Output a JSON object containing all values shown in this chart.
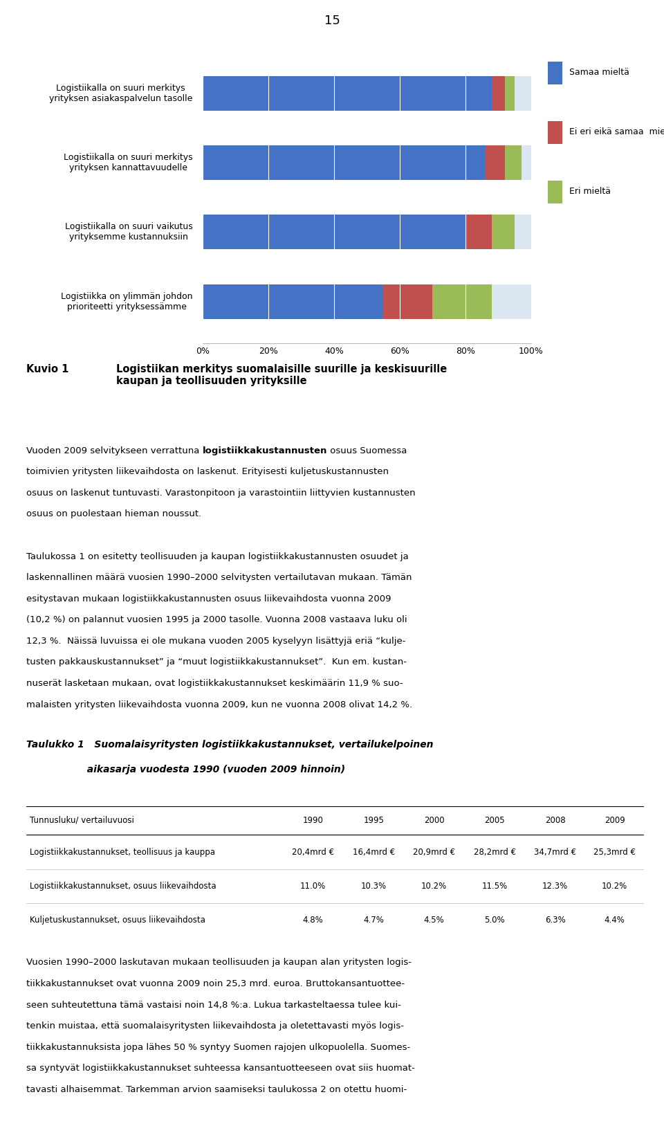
{
  "page_number": "15",
  "chart": {
    "categories": [
      "Logistiikalla on suuri merkitys\nyrityksen asiakaspalvelun tasolle",
      "Logistiikalla on suuri merkitys\nyrityksen kannattavuudelle",
      "Logistiikalla on suuri vaikutus\nyrityksemme kustannuksiin",
      "Logistiikka on ylimmän johdon\nprioriteetti yrityksessämme"
    ],
    "samaa_mielta": [
      88,
      86,
      80,
      55
    ],
    "ei_eri_eika_samaa": [
      4,
      6,
      8,
      15
    ],
    "eri_mielta": [
      3,
      5,
      7,
      18
    ],
    "colors": {
      "samaa_mielta": "#4472C4",
      "ei_eri_eika_samaa": "#C0504D",
      "eri_mielta": "#9BBB59",
      "background_bar": "#DCE6F1"
    },
    "legend": [
      "Samaa mieltä",
      "Ei eri eikä samaa  mieltä",
      "Eri mieltä"
    ],
    "xticks": [
      0,
      20,
      40,
      60,
      80,
      100
    ],
    "xtick_labels": [
      "0%",
      "20%",
      "40%",
      "60%",
      "80%",
      "100%"
    ]
  },
  "caption_label": "Kuvio 1",
  "caption_text": "Logistiikan merkitys suomalaisille suurille ja keskisuurille\nkaupan ja teollisuuden yrityksille",
  "body_text_plain": [
    "Vuoden 2009 selvitykseen verrattuna ",
    " osuus Suomessa",
    "toimivien yritysten liikevaihdosta on laskenut. Erityisesti kuljetuskustannusten",
    "osuus on laskenut tuntuvasti. Varastonpitoon ja varastointiin liittyvien kustannusten",
    "osuus on puolestaan hieman noussut.",
    "",
    "Taulukossa 1 on esitetty teollisuuden ja kaupan logistiikkakustannusten osuudet ja",
    "laskennallinen määrä vuosien 1990–2000 selvitysten vertailutavan mukaan. Tämän",
    "esitystavan mukaan logistiikkakustannusten osuus liikevaihdosta vuonna 2009",
    "(10,2 %) on palannut vuosien 1995 ja 2000 tasolle. Vuonna 2008 vastaava luku oli",
    "12,3 %.  Näissä luvuissa ei ole mukana vuoden 2005 kyselyyn lisättyjä eriä “kulje-",
    "tusten pakkauskustannukset” ja “muut logistiikkakustannukset”.  Kun em. kustan-",
    "nuserät lasketaan mukaan, ovat logistiikkakustannukset keskimäärin 11,9 % suo-",
    "malaisten yritysten liikevaihdosta vuonna 2009, kun ne vuonna 2008 olivat 14,2 %."
  ],
  "body_line1_before_bold": "Vuoden 2009 selvitykseen verrattuna ",
  "body_line1_bold": "logistiikkakustannusten",
  "body_line1_after_bold": " osuus Suomessa",
  "body_lines": [
    "Vuoden 2009 selvitykseen verrattuna logistiikkakustannusten osuus Suomessa",
    "toimivien yritysten liikevaihdosta on laskenut. Erityisesti kuljetuskustannusten",
    "osuus on laskenut tuntuvasti. Varastonpitoon ja varastointiin liittyvien kustannusten",
    "osuus on puolestaan hieman noussut.",
    "",
    "Taulukossa 1 on esitetty teollisuuden ja kaupan logistiikkakustannusten osuudet ja",
    "laskennallinen määrä vuosien 1990–2000 selvitysten vertailutavan mukaan. Tämän",
    "esitystavan mukaan logistiikkakustannusten osuus liikevaihdosta vuonna 2009",
    "(10,2 %) on palannut vuosien 1995 ja 2000 tasolle. Vuonna 2008 vastaava luku oli",
    "12,3 %.  Näissä luvuissa ei ole mukana vuoden 2005 kyselyyn lisättyjä eriä “kulje-",
    "tusten pakkauskustannukset” ja “muut logistiikkakustannukset”.  Kun em. kustan-",
    "nuserät lasketaan mukaan, ovat logistiikkakustannukset keskimäärin 11,9 % suo-",
    "malaisten yritysten liikevaihdosta vuonna 2009, kun ne vuonna 2008 olivat 14,2 %."
  ],
  "table_title_line1": "Taulukko 1   Suomalaisyritysten logistiikkakustannukset, vertailukelpoinen",
  "table_title_line2": "                  aikasarja vuodesta 1990 (vuoden 2009 hinnoin)",
  "table_headers": [
    "Tunnusluku/ vertailuvuosi",
    "1990",
    "1995",
    "2000",
    "2005",
    "2008",
    "2009"
  ],
  "table_rows": [
    [
      "Logistiikkakustannukset, teollisuus ja kauppa",
      "20,4mrd €",
      "16,4mrd €",
      "20,9mrd €",
      "28,2mrd €",
      "34,7mrd €",
      "25,3mrd €"
    ],
    [
      "Logistiikkakustannukset, osuus liikevaihdosta",
      "11.0%",
      "10.3%",
      "10.2%",
      "11.5%",
      "12.3%",
      "10.2%"
    ],
    [
      "Kuljetuskustannukset, osuus liikevaihdosta",
      "4.8%",
      "4.7%",
      "4.5%",
      "5.0%",
      "6.3%",
      "4.4%"
    ]
  ],
  "footer_lines": [
    "Vuosien 1990–2000 laskutavan mukaan teollisuuden ja kaupan alan yritysten logis-",
    "tiikkakustannukset ovat vuonna 2009 noin 25,3 mrd. euroa. Bruttokansantuottee-",
    "seen suhteutettuna tämä vastaisi noin 14,8 %:a. Lukua tarkasteltaessa tulee kui-",
    "tenkin muistaa, että suomalaisyritysten liikevaihdosta ja oletettavasti myös logis-",
    "tiikkakustannuksista jopa lähes 50 % syntyy Suomen rajojen ulkopuolella. Suomes-",
    "sa syntyvät logistiikkakustannukset suhteessa kansantuotteeseen ovat siis huomat-",
    "tavasti alhaisemmat. Tarkemman arvion saamiseksi taulukossa 2 on otettu huomi-"
  ]
}
